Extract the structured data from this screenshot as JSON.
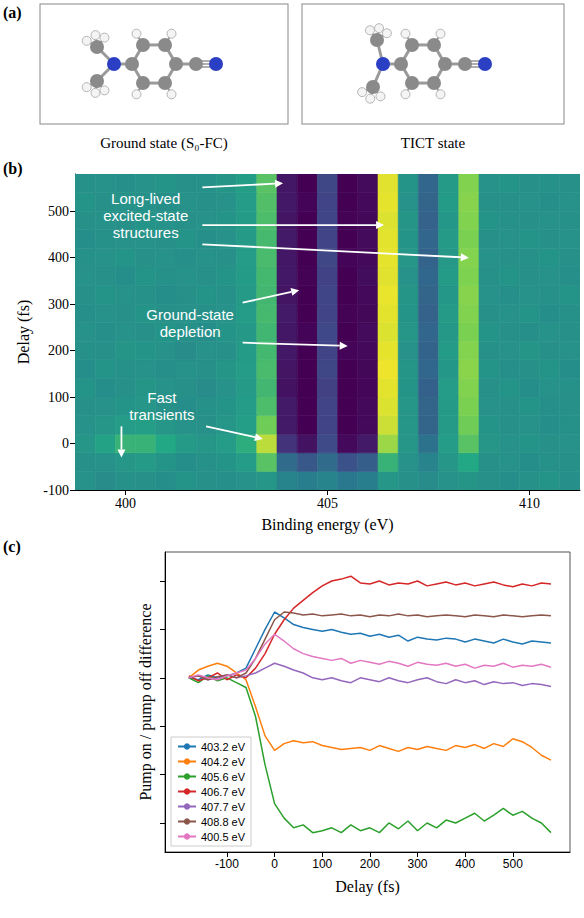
{
  "diagram": {
    "label": "(a)",
    "structures": [
      {
        "caption": "Ground state (S₀-FC)"
      },
      {
        "caption": "TICT state"
      }
    ]
  },
  "chart_data": [
    {
      "type": "heatmap",
      "label": "(b)",
      "x_label": "Binding energy (eV)",
      "y_label": "Delay (fs)",
      "xlim": [
        398.75,
        411.25
      ],
      "ylim": [
        -100,
        580
      ],
      "xticks": [
        400,
        405,
        410
      ],
      "yticks": [
        -100,
        0,
        100,
        200,
        300,
        400,
        500
      ],
      "grid": false,
      "zlim": [
        -1,
        1
      ],
      "x_edges": [
        398.75,
        399.25,
        399.75,
        400.25,
        400.75,
        401.25,
        401.75,
        402.25,
        402.75,
        403.25,
        403.75,
        404.25,
        404.75,
        405.25,
        405.75,
        406.25,
        406.75,
        407.25,
        407.75,
        408.25,
        408.75,
        409.25,
        409.75,
        410.25,
        410.75,
        411.25
      ],
      "y_edges": [
        -100,
        -60,
        -20,
        20,
        60,
        100,
        140,
        180,
        220,
        260,
        300,
        340,
        380,
        420,
        460,
        500,
        540,
        580
      ],
      "z": [
        [
          0.02,
          -0.03,
          0.01,
          0.0,
          -0.02,
          0.03,
          0.0,
          -0.01,
          0.02,
          0.05,
          -0.1,
          -0.15,
          -0.1,
          -0.2,
          -0.15,
          0.05,
          0.0,
          -0.03,
          0.02,
          0.04,
          0.0,
          -0.02,
          0.01,
          0.03,
          -0.01
        ],
        [
          0.0,
          0.02,
          0.05,
          0.08,
          0.03,
          -0.02,
          0.01,
          0.03,
          0.1,
          0.45,
          -0.3,
          -0.45,
          -0.3,
          -0.5,
          -0.4,
          0.3,
          0.02,
          -0.1,
          0.05,
          0.2,
          0.0,
          0.02,
          -0.02,
          0.01,
          0.0
        ],
        [
          0.05,
          0.15,
          0.3,
          0.3,
          0.2,
          0.08,
          0.05,
          0.1,
          0.25,
          0.8,
          -0.7,
          -0.9,
          -0.55,
          -0.95,
          -0.85,
          0.7,
          0.05,
          -0.25,
          0.1,
          0.45,
          0.05,
          0.02,
          0.03,
          0.0,
          0.02
        ],
        [
          0.02,
          0.05,
          0.1,
          0.12,
          0.05,
          0.02,
          0.0,
          0.05,
          0.12,
          0.55,
          -0.85,
          -1.0,
          -0.6,
          -1.0,
          -0.95,
          0.85,
          0.05,
          -0.35,
          0.08,
          0.55,
          0.03,
          0.0,
          0.02,
          -0.02,
          0.01
        ],
        [
          0.0,
          0.02,
          0.03,
          0.05,
          0.0,
          -0.02,
          0.01,
          0.03,
          0.1,
          0.4,
          -0.85,
          -1.0,
          -0.6,
          -1.0,
          -0.95,
          0.9,
          0.05,
          -0.35,
          0.08,
          0.6,
          0.02,
          0.0,
          0.03,
          -0.01,
          0.0
        ],
        [
          0.03,
          -0.02,
          0.0,
          0.04,
          0.02,
          0.0,
          -0.03,
          0.02,
          0.08,
          0.35,
          -0.9,
          -1.0,
          -0.62,
          -1.0,
          -0.97,
          0.92,
          0.03,
          -0.38,
          0.1,
          0.62,
          0.0,
          0.03,
          -0.02,
          0.02,
          0.01
        ],
        [
          -0.02,
          0.03,
          0.01,
          0.02,
          -0.01,
          0.02,
          0.0,
          0.04,
          0.1,
          0.38,
          -0.88,
          -1.0,
          -0.58,
          -1.0,
          -0.96,
          0.95,
          0.04,
          -0.33,
          0.06,
          0.65,
          0.03,
          -0.01,
          0.0,
          0.03,
          -0.02
        ],
        [
          0.01,
          0.0,
          0.04,
          0.03,
          0.02,
          -0.03,
          0.02,
          0.0,
          0.09,
          0.36,
          -0.86,
          -1.0,
          -0.6,
          -0.98,
          -0.95,
          0.93,
          0.02,
          -0.36,
          0.09,
          0.63,
          0.01,
          0.02,
          0.04,
          0.0,
          0.02
        ],
        [
          0.02,
          -0.01,
          0.02,
          0.0,
          0.03,
          0.01,
          -0.02,
          0.03,
          0.07,
          0.34,
          -0.87,
          -0.98,
          -0.57,
          -1.0,
          -0.94,
          0.9,
          0.05,
          -0.34,
          0.07,
          0.6,
          0.03,
          0.0,
          -0.01,
          0.02,
          0.0
        ],
        [
          -0.01,
          0.02,
          0.0,
          0.03,
          0.0,
          0.02,
          0.01,
          0.02,
          0.1,
          0.37,
          -0.85,
          -1.0,
          -0.6,
          -0.99,
          -0.96,
          0.92,
          0.03,
          -0.37,
          0.08,
          0.62,
          0.0,
          0.02,
          0.03,
          -0.02,
          0.01
        ],
        [
          0.0,
          0.03,
          0.02,
          0.01,
          -0.02,
          0.0,
          0.03,
          0.01,
          0.08,
          0.35,
          -0.88,
          -1.0,
          -0.59,
          -1.0,
          -0.95,
          0.94,
          0.04,
          -0.35,
          0.06,
          0.64,
          0.02,
          -0.01,
          0.02,
          0.01,
          0.03
        ],
        [
          0.02,
          0.0,
          -0.02,
          0.03,
          0.01,
          0.02,
          0.0,
          0.03,
          0.09,
          0.36,
          -0.86,
          -0.99,
          -0.61,
          -1.0,
          -0.93,
          0.91,
          0.02,
          -0.33,
          0.09,
          0.61,
          0.01,
          0.03,
          0.0,
          0.02,
          -0.01
        ],
        [
          0.01,
          0.02,
          0.03,
          0.0,
          0.02,
          -0.01,
          0.02,
          0.0,
          0.1,
          0.38,
          -0.87,
          -1.0,
          -0.58,
          -0.98,
          -0.95,
          0.93,
          0.05,
          -0.36,
          0.07,
          0.63,
          0.02,
          0.0,
          0.01,
          0.03,
          0.0
        ],
        [
          -0.02,
          0.01,
          0.02,
          0.02,
          0.0,
          0.03,
          -0.01,
          0.02,
          0.08,
          0.37,
          -0.85,
          -1.0,
          -0.6,
          -1.0,
          -0.94,
          0.92,
          0.03,
          -0.34,
          0.08,
          0.6,
          0.0,
          0.02,
          0.03,
          0.0,
          0.02
        ],
        [
          0.0,
          0.02,
          0.0,
          0.03,
          0.02,
          0.0,
          0.02,
          0.03,
          0.09,
          0.4,
          -0.88,
          -1.0,
          -0.59,
          -0.99,
          -0.96,
          0.9,
          0.04,
          -0.37,
          0.06,
          0.62,
          0.03,
          0.01,
          0.0,
          0.02,
          0.01
        ],
        [
          0.03,
          0.0,
          0.02,
          0.01,
          -0.01,
          0.02,
          0.0,
          0.02,
          0.1,
          0.42,
          -0.86,
          -0.98,
          -0.6,
          -1.0,
          -0.95,
          0.93,
          0.02,
          -0.35,
          0.09,
          0.64,
          0.01,
          0.0,
          0.02,
          -0.01,
          0.02
        ],
        [
          0.01,
          0.02,
          -0.01,
          0.02,
          0.03,
          0.0,
          0.01,
          0.04,
          0.11,
          0.45,
          -0.87,
          -1.0,
          -0.58,
          -1.0,
          -0.94,
          0.91,
          0.03,
          -0.34,
          0.08,
          0.62,
          0.02,
          0.03,
          0.0,
          0.01,
          0.0
        ]
      ],
      "annotations": [
        {
          "text": "Long-lived excited-state structures",
          "x": 400.5,
          "y": 490,
          "arrows": [
            [
              403.9,
              560
            ],
            [
              406.4,
              470
            ],
            [
              408.5,
              400
            ]
          ]
        },
        {
          "text": "Ground-state depletion",
          "x": 401.6,
          "y": 260,
          "arrows": [
            [
              404.3,
              330
            ],
            [
              405.5,
              210
            ]
          ]
        },
        {
          "text": "Fast transients",
          "x": 400.9,
          "y": 80,
          "arrows": [
            [
              399.9,
              -30
            ],
            [
              403.4,
              10
            ]
          ]
        }
      ]
    },
    {
      "type": "line",
      "label": "(c)",
      "x_label": "Delay (fs)",
      "y_label": "Pump on / pump off difference",
      "xlim": [
        -230,
        620
      ],
      "ylim": [
        -1.8,
        1.3
      ],
      "xticks": [
        -100,
        0,
        100,
        200,
        300,
        400,
        500
      ],
      "yticks": [
        -1.5,
        -1,
        -0.5,
        0,
        0.5,
        1
      ],
      "tick_labels": "x",
      "grid": false,
      "legend": "lower left",
      "x": [
        -180,
        -160,
        -140,
        -120,
        -100,
        -80,
        -60,
        -40,
        -20,
        0,
        20,
        40,
        60,
        80,
        100,
        120,
        140,
        160,
        180,
        200,
        220,
        240,
        260,
        280,
        300,
        320,
        340,
        360,
        380,
        400,
        420,
        440,
        460,
        480,
        500,
        520,
        540,
        560,
        580
      ],
      "series": [
        {
          "name": "403.2 eV",
          "color": "#1f77b4",
          "values": [
            0.0,
            -0.02,
            0.03,
            0.0,
            0.02,
            0.05,
            0.1,
            0.3,
            0.5,
            0.68,
            0.62,
            0.55,
            0.52,
            0.5,
            0.48,
            0.5,
            0.47,
            0.45,
            0.46,
            0.43,
            0.45,
            0.42,
            0.44,
            0.38,
            0.42,
            0.4,
            0.39,
            0.41,
            0.4,
            0.37,
            0.4,
            0.38,
            0.36,
            0.4,
            0.37,
            0.35,
            0.38,
            0.37,
            0.36
          ]
        },
        {
          "name": "404.2 eV",
          "color": "#ff7f0e",
          "values": [
            0.0,
            0.08,
            0.12,
            0.15,
            0.12,
            0.05,
            -0.02,
            -0.3,
            -0.6,
            -0.75,
            -0.68,
            -0.65,
            -0.67,
            -0.66,
            -0.7,
            -0.72,
            -0.74,
            -0.73,
            -0.72,
            -0.75,
            -0.7,
            -0.73,
            -0.76,
            -0.72,
            -0.74,
            -0.71,
            -0.73,
            -0.75,
            -0.7,
            -0.72,
            -0.69,
            -0.73,
            -0.68,
            -0.71,
            -0.63,
            -0.66,
            -0.72,
            -0.8,
            -0.85
          ]
        },
        {
          "name": "405.6 eV",
          "color": "#2ca02c",
          "values": [
            0.0,
            -0.05,
            0.02,
            -0.03,
            0.0,
            -0.05,
            -0.1,
            -0.4,
            -0.9,
            -1.3,
            -1.45,
            -1.55,
            -1.52,
            -1.6,
            -1.58,
            -1.55,
            -1.6,
            -1.52,
            -1.58,
            -1.55,
            -1.6,
            -1.5,
            -1.56,
            -1.48,
            -1.58,
            -1.5,
            -1.55,
            -1.47,
            -1.5,
            -1.45,
            -1.4,
            -1.48,
            -1.42,
            -1.35,
            -1.42,
            -1.38,
            -1.45,
            -1.5,
            -1.6
          ]
        },
        {
          "name": "406.7 eV",
          "color": "#d62728",
          "values": [
            0.02,
            -0.03,
            0.0,
            0.05,
            -0.02,
            0.03,
            0.0,
            0.1,
            0.25,
            0.45,
            0.6,
            0.72,
            0.8,
            0.88,
            0.95,
            1.0,
            1.02,
            1.05,
            0.98,
            0.97,
            1.0,
            0.96,
            0.98,
            0.97,
            1.0,
            0.95,
            0.97,
            0.99,
            0.96,
            0.98,
            0.95,
            0.97,
            0.99,
            0.96,
            0.94,
            0.97,
            0.95,
            0.98,
            0.97
          ]
        },
        {
          "name": "407.7 eV",
          "color": "#9467bd",
          "values": [
            0.0,
            0.02,
            -0.02,
            0.0,
            0.03,
            0.0,
            0.02,
            0.05,
            0.1,
            0.15,
            0.12,
            0.08,
            0.05,
            0.0,
            -0.02,
            0.0,
            -0.03,
            -0.05,
            0.0,
            -0.02,
            -0.04,
            0.0,
            -0.03,
            -0.05,
            -0.02,
            0.0,
            -0.04,
            -0.06,
            -0.02,
            -0.05,
            -0.03,
            -0.07,
            -0.04,
            -0.06,
            -0.05,
            -0.08,
            -0.06,
            -0.07,
            -0.09
          ]
        },
        {
          "name": "408.8 eV",
          "color": "#8c564b",
          "values": [
            0.0,
            0.02,
            -0.02,
            0.01,
            0.03,
            0.0,
            0.05,
            0.2,
            0.4,
            0.6,
            0.68,
            0.67,
            0.65,
            0.66,
            0.64,
            0.65,
            0.66,
            0.64,
            0.65,
            0.63,
            0.65,
            0.64,
            0.66,
            0.64,
            0.65,
            0.63,
            0.64,
            0.65,
            0.64,
            0.63,
            0.65,
            0.64,
            0.63,
            0.65,
            0.64,
            0.63,
            0.64,
            0.65,
            0.64
          ]
        },
        {
          "name": "400.5 eV",
          "color": "#e377c2",
          "values": [
            0.0,
            0.03,
            0.0,
            -0.02,
            0.02,
            0.05,
            0.08,
            0.2,
            0.35,
            0.45,
            0.38,
            0.3,
            0.25,
            0.22,
            0.2,
            0.18,
            0.2,
            0.15,
            0.18,
            0.16,
            0.14,
            0.17,
            0.15,
            0.12,
            0.16,
            0.14,
            0.13,
            0.15,
            0.12,
            0.14,
            0.1,
            0.13,
            0.12,
            0.15,
            0.11,
            0.13,
            0.12,
            0.14,
            0.11
          ]
        }
      ]
    }
  ]
}
